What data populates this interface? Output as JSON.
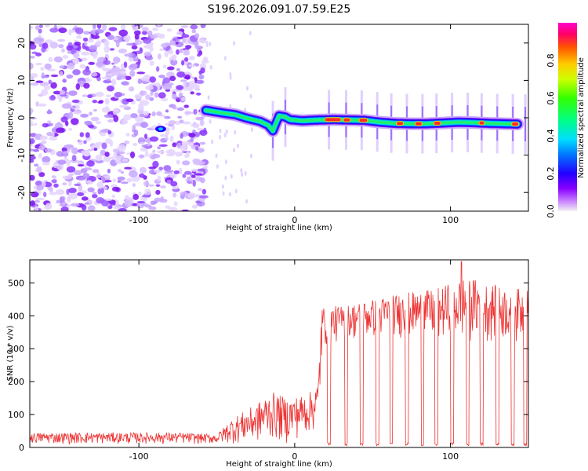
{
  "title": "S196.2026.091.07.59.E25",
  "chart_data": [
    {
      "type": "heatmap",
      "name": "spectrogram",
      "xlabel": "Height of straight line (km)",
      "ylabel": "Frequency (Hz)",
      "xlim": [
        -170,
        150
      ],
      "ylim": [
        -25,
        25
      ],
      "xticks": [
        -100,
        0,
        100
      ],
      "xtick_labels": [
        "-100",
        "0",
        "100"
      ],
      "yticks": [
        20,
        10,
        0,
        -10,
        -20
      ],
      "ytick_labels": [
        "20",
        "10",
        "0",
        "-10",
        "-20"
      ],
      "noise_region_km": [
        -170,
        -57
      ],
      "track": {
        "description": "frequency ridge of signal",
        "x": [
          -57,
          -45,
          -38,
          -30,
          -22,
          -17,
          -14,
          -10,
          -6,
          -3,
          5,
          15,
          25,
          35,
          45,
          55,
          65,
          75,
          85,
          95,
          105,
          115,
          125,
          135,
          143
        ],
        "freq_hz": [
          2,
          1.2,
          0.8,
          -0.2,
          -1.0,
          -2.0,
          -3.5,
          0.5,
          0.2,
          -0.5,
          -0.8,
          -0.6,
          -0.5,
          -0.6,
          -0.7,
          -1.2,
          -1.5,
          -1.6,
          -1.6,
          -1.4,
          -1.2,
          -1.3,
          -1.5,
          -1.6,
          -1.7
        ],
        "hot_segments": [
          [
            19,
            30
          ],
          [
            31,
            36
          ],
          [
            41,
            47
          ],
          [
            65,
            70
          ],
          [
            77,
            82
          ],
          [
            89,
            94
          ],
          [
            118,
            122
          ],
          [
            139,
            144
          ]
        ]
      },
      "colorbar": {
        "label": "Normalized spectral amplitude",
        "range": [
          0,
          1
        ],
        "ticks": [
          0,
          0.2,
          0.4,
          0.6,
          0.8
        ],
        "tick_labels": [
          "0.0",
          "0.2",
          "0.4",
          "0.6",
          "0.8"
        ]
      }
    },
    {
      "type": "line",
      "name": "snr",
      "xlabel": "Height of straight line (km)",
      "ylabel": "SNR (10 * v/v)",
      "xlim": [
        -170,
        150
      ],
      "ylim": [
        0,
        570
      ],
      "xticks": [
        -100,
        0,
        100
      ],
      "xtick_labels": [
        "-100",
        "0",
        "100"
      ],
      "yticks": [
        0,
        100,
        200,
        300,
        400,
        500
      ],
      "ytick_labels": [
        "0",
        "100",
        "200",
        "300",
        "400",
        "500"
      ],
      "series": [
        {
          "name": "SNR",
          "color": "#ee3333",
          "envelope_x": [
            -170,
            -120,
            -75,
            -50,
            -40,
            -25,
            -15,
            -5,
            5,
            10,
            15,
            17,
            18,
            30,
            50,
            70,
            90,
            110,
            130,
            150
          ],
          "envelope_max": [
            45,
            45,
            45,
            40,
            90,
            130,
            170,
            150,
            160,
            170,
            200,
            430,
            430,
            430,
            450,
            470,
            480,
            520,
            490,
            480
          ],
          "envelope_min": [
            10,
            10,
            10,
            10,
            10,
            10,
            20,
            10,
            30,
            40,
            50,
            200,
            300,
            320,
            330,
            330,
            320,
            320,
            320,
            320
          ],
          "dropout_x": [
            22,
            33,
            43,
            53,
            62,
            72,
            82,
            91,
            101,
            111,
            120,
            130,
            140,
            148
          ],
          "peak": {
            "x": 107,
            "y": 565
          }
        }
      ]
    }
  ]
}
